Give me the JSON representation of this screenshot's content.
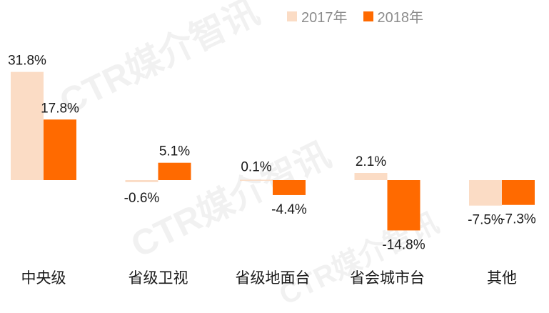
{
  "watermark": "CTR媒介智讯",
  "chart_data": {
    "type": "bar",
    "categories": [
      "中央级",
      "省级卫视",
      "省级地面台",
      "省会城市台",
      "其他"
    ],
    "series": [
      {
        "name": "2017年",
        "color": "#fbdcc5",
        "values": [
          31.8,
          -0.6,
          0.1,
          2.1,
          -7.5
        ],
        "labels": [
          "31.8%",
          "-0.6%",
          "0.1%",
          "2.1%",
          "-7.5%"
        ]
      },
      {
        "name": "2018年",
        "color": "#ff6a00",
        "values": [
          17.8,
          5.1,
          -4.4,
          -14.8,
          -7.3
        ],
        "labels": [
          "17.8%",
          "5.1%",
          "-4.4%",
          "-14.8%",
          "-7.3%"
        ]
      }
    ],
    "ylim": [
      -16.5,
      34
    ],
    "legend": "top-right",
    "grid": false
  }
}
